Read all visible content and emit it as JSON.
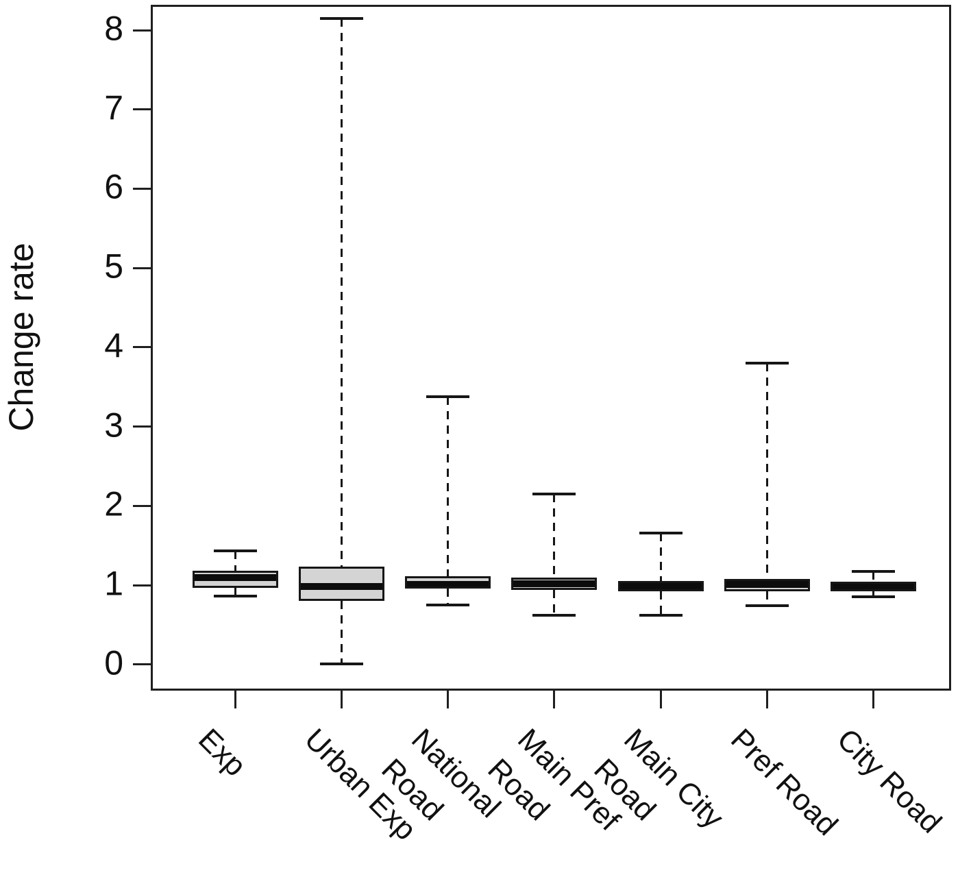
{
  "figure": {
    "title": "",
    "description": "Boxplot of change rate by road type"
  },
  "chart_data": {
    "type": "boxplot",
    "title": "",
    "xlabel": "",
    "ylabel": "Change rate",
    "ylim": [
      -0.33,
      8.32
    ],
    "yticks": [
      0,
      1,
      2,
      3,
      4,
      5,
      6,
      7,
      8
    ],
    "grid": false,
    "legend": null,
    "categories": [
      "Exp",
      "Urban Exp",
      "National\nRoad",
      "Main Pref\nRoad",
      "Main City\nRoad",
      "Pref Road",
      "City Road"
    ],
    "series": [
      {
        "name": "Exp",
        "whisker_low": 0.86,
        "q1": 0.97,
        "median": 1.1,
        "q3": 1.18,
        "whisker_high": 1.43
      },
      {
        "name": "Urban Exp",
        "whisker_low": 0.01,
        "q1": 0.8,
        "median": 0.98,
        "q3": 1.23,
        "whisker_high": 8.15
      },
      {
        "name": "National Road",
        "whisker_low": 0.75,
        "q1": 0.96,
        "median": 1.01,
        "q3": 1.11,
        "whisker_high": 3.38
      },
      {
        "name": "Main Pref Road",
        "whisker_low": 0.62,
        "q1": 0.94,
        "median": 1.02,
        "q3": 1.1,
        "whisker_high": 2.15
      },
      {
        "name": "Main City Road",
        "whisker_low": 0.62,
        "q1": 0.92,
        "median": 0.99,
        "q3": 1.05,
        "whisker_high": 1.66
      },
      {
        "name": "Pref Road",
        "whisker_low": 0.74,
        "q1": 0.92,
        "median": 1.01,
        "q3": 1.08,
        "whisker_high": 3.8
      },
      {
        "name": "City Road",
        "whisker_low": 0.85,
        "q1": 0.92,
        "median": 0.98,
        "q3": 1.04,
        "whisker_high": 1.17
      }
    ],
    "colors": {
      "box_fill": "#d4d4d4",
      "line": "#161616",
      "background": "#ffffff"
    }
  }
}
